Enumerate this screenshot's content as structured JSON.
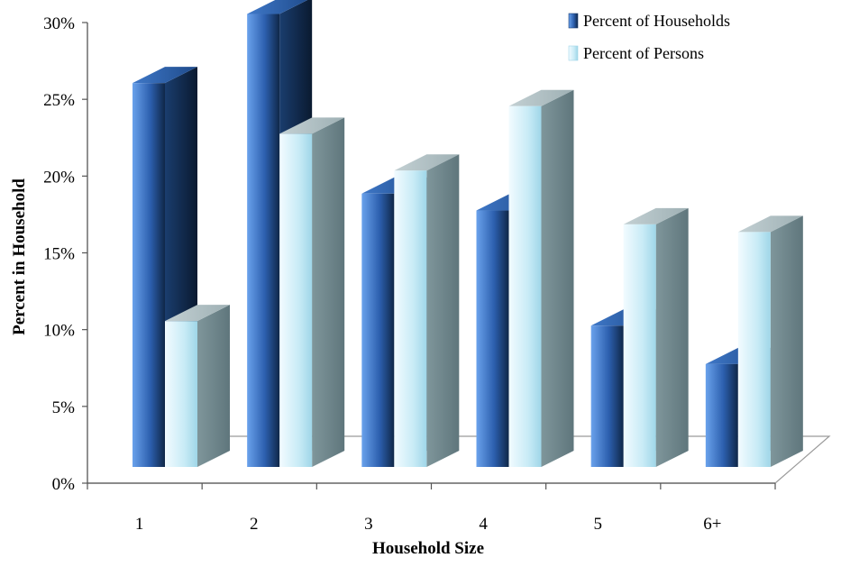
{
  "chart_data": {
    "type": "bar",
    "title": "",
    "xlabel": "Household Size",
    "ylabel": "Percent in Household",
    "categories": [
      "1",
      "2",
      "3",
      "4",
      "5",
      "6+"
    ],
    "series": [
      {
        "name": "Percent of Households",
        "values": [
          25,
          29.5,
          17.8,
          16.7,
          9.2,
          6.7
        ],
        "color": "#2f66b8"
      },
      {
        "name": "Percent of Persons",
        "values": [
          9.5,
          21.7,
          19.3,
          23.5,
          15.8,
          15.3
        ],
        "color": "#cdeef8"
      }
    ],
    "ylim": [
      0,
      30
    ],
    "yticks": [
      "0%",
      "5%",
      "10%",
      "15%",
      "20%",
      "25%",
      "30%"
    ],
    "legend_position": "top-right",
    "style": "3d-column",
    "grid": false
  }
}
